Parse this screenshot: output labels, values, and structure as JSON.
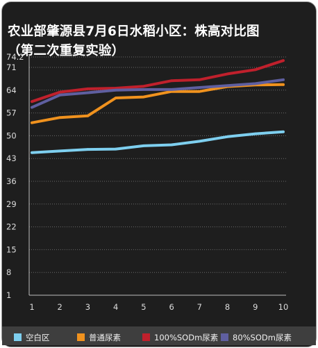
{
  "title_line1": "农业部肇源县7月6日水稻小区：株高对比图",
  "title_line2": "（第二次重复实验）",
  "colors": {
    "background": "#1e1e1e",
    "grid": "#6a6a6a",
    "axis": "#bfbfbf"
  },
  "chart_data": {
    "type": "line",
    "title": "农业部肇源县7月6日水稻小区：株高对比图（第二次重复实验）",
    "xlabel": "",
    "ylabel": "",
    "x": [
      1,
      2,
      3,
      4,
      5,
      6,
      7,
      8,
      9,
      10
    ],
    "ylim": [
      1,
      74.2
    ],
    "yticks": [
      1,
      8,
      15,
      22,
      29,
      36,
      43,
      50,
      57,
      64,
      71,
      74.2
    ],
    "grid": true,
    "legend_position": "bottom",
    "series": [
      {
        "name": "空白区",
        "color": "#7ecfef",
        "values": [
          44.8,
          45.3,
          45.8,
          45.9,
          46.9,
          47.2,
          48.3,
          49.7,
          50.6,
          51.2
        ]
      },
      {
        "name": "普通尿素",
        "color": "#f0921e",
        "values": [
          54.0,
          55.6,
          56.1,
          61.6,
          61.9,
          63.6,
          63.6,
          65.1,
          65.6,
          65.7
        ]
      },
      {
        "name": "100%SODm尿素",
        "color": "#c0202c",
        "values": [
          60.5,
          63.4,
          64.4,
          64.6,
          65.2,
          66.9,
          67.2,
          69.0,
          70.3,
          73.1
        ]
      },
      {
        "name": "80%SODm尿素",
        "color": "#5f5fa0",
        "values": [
          58.7,
          62.5,
          63.2,
          64.0,
          64.2,
          64.2,
          64.8,
          65.4,
          66.0,
          67.2
        ]
      }
    ]
  }
}
